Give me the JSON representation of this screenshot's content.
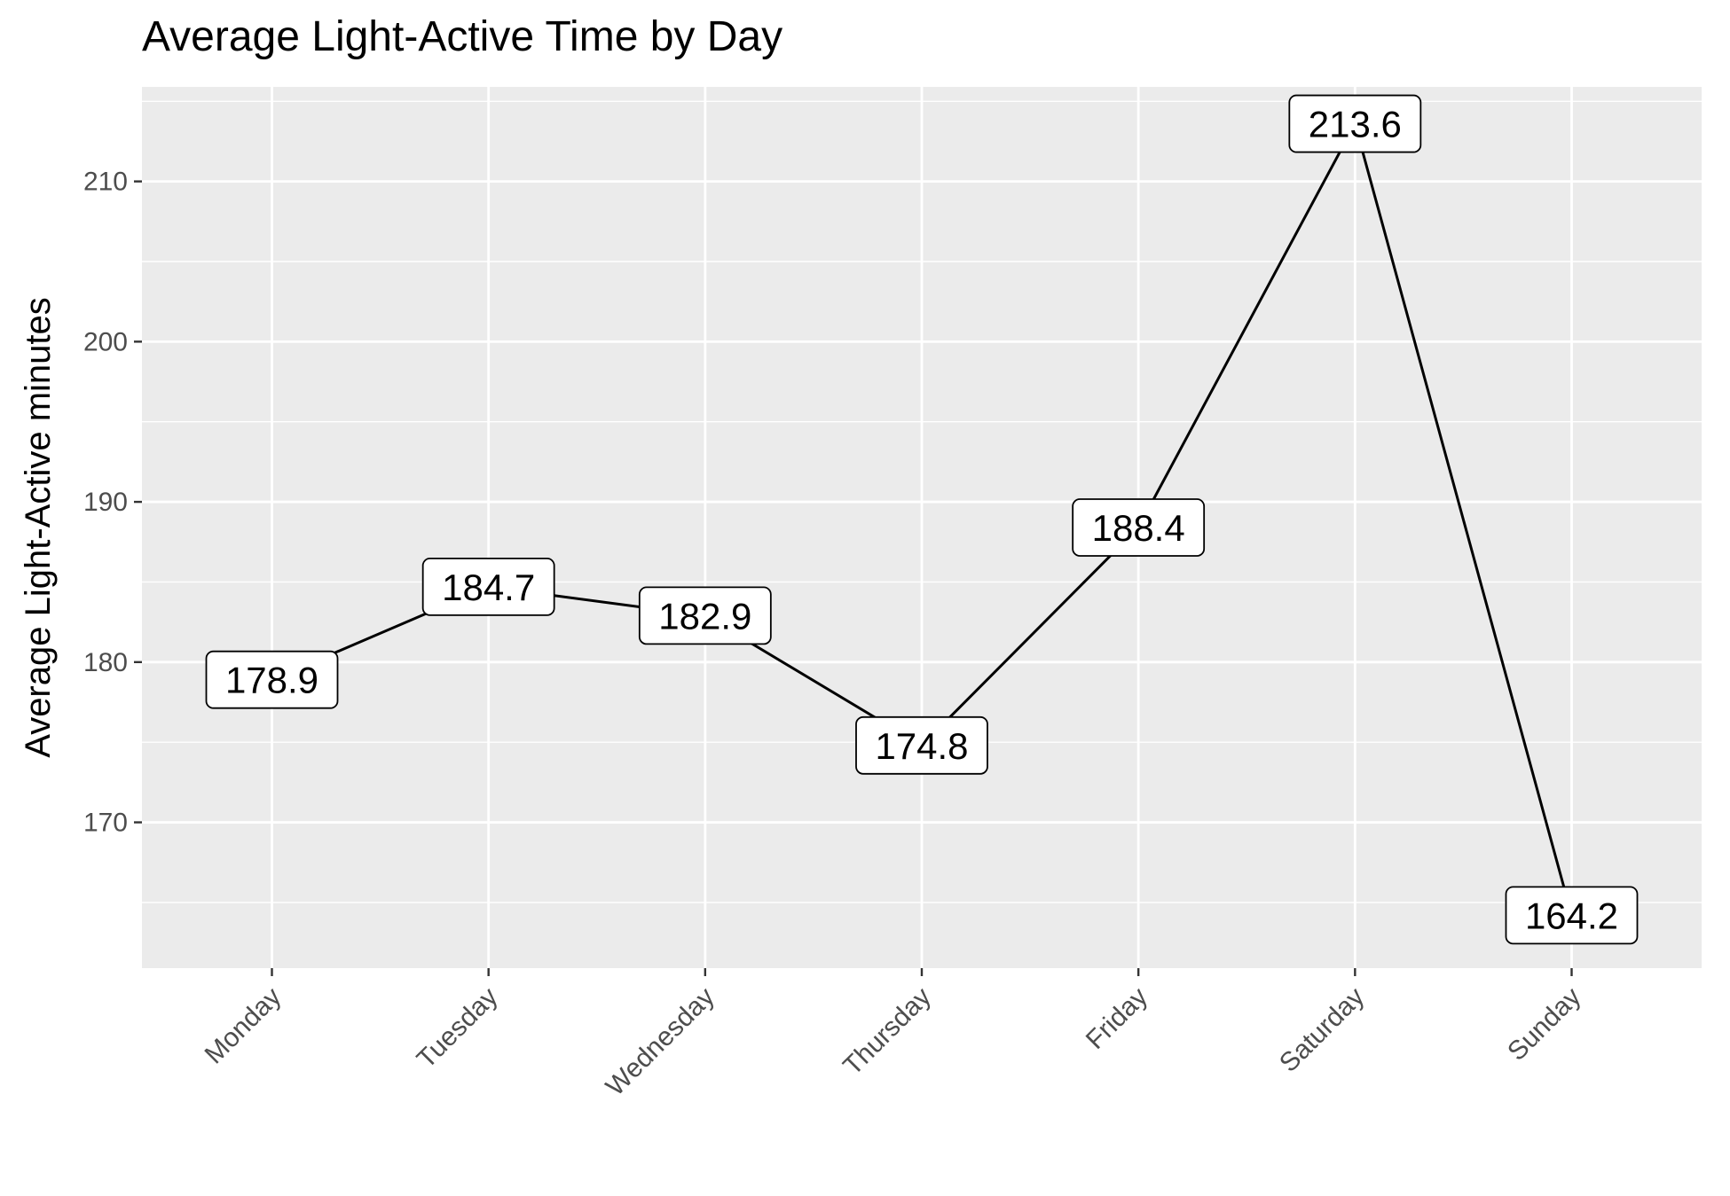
{
  "chart_data": {
    "type": "line",
    "title": "Average Light-Active Time by Day",
    "xlabel": "",
    "ylabel": "Average Light-Active minutes",
    "categories": [
      "Monday",
      "Tuesday",
      "Wednesday",
      "Thursday",
      "Friday",
      "Saturday",
      "Sunday"
    ],
    "series": [
      {
        "values": [
          178.9,
          184.7,
          182.9,
          174.8,
          188.4,
          213.6,
          164.2
        ],
        "labels": [
          "178.9",
          "184.7",
          "182.9",
          "174.8",
          "188.4",
          "213.6",
          "164.2"
        ]
      }
    ],
    "ylim": [
      160.9,
      215.9
    ],
    "yticks": [
      170,
      180,
      190,
      200,
      210
    ],
    "ytick_labels": [
      "170",
      "180",
      "190",
      "200",
      "210"
    ],
    "grid": true,
    "legend": "none",
    "colors": {
      "panel_background": "#ebebeb",
      "grid": "#ffffff",
      "line": "#000000",
      "label_fill": "#ffffff",
      "tick_text": "#4d4d4d"
    }
  }
}
